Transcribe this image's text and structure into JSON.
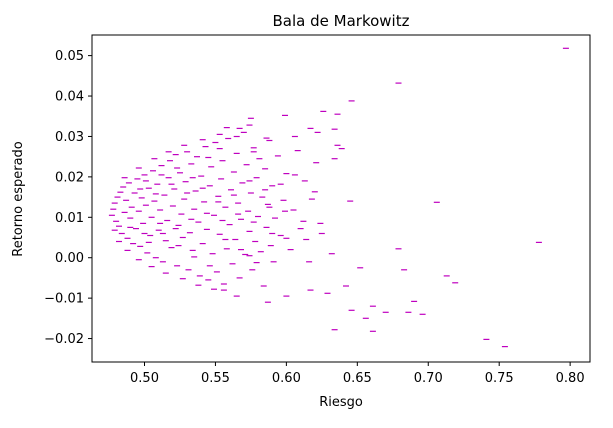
{
  "chart_data": {
    "type": "scatter",
    "title": "Bala de Markowitz",
    "xlabel": "Riesgo",
    "ylabel": "Retorno esperado",
    "xlim": [
      0.463,
      0.814
    ],
    "ylim": [
      -0.0258,
      0.0551
    ],
    "x_ticks": [
      0.5,
      0.55,
      0.6,
      0.65,
      0.7,
      0.75,
      0.8
    ],
    "x_tick_labels": [
      "0.50",
      "0.55",
      "0.60",
      "0.65",
      "0.70",
      "0.75",
      "0.80"
    ],
    "y_ticks": [
      -0.02,
      -0.01,
      0.0,
      0.01,
      0.02,
      0.03,
      0.04,
      0.05
    ],
    "y_tick_labels": [
      "−0.02",
      "−0.01",
      "0.00",
      "0.01",
      "0.02",
      "0.03",
      "0.04",
      "0.05"
    ],
    "grid": false,
    "legend": "none",
    "marker": "horizontal-dash",
    "marker_color": "#bf00bf",
    "points": [
      {
        "x": 0.797,
        "y": 0.0518
      },
      {
        "x": 0.679,
        "y": 0.0432
      },
      {
        "x": 0.646,
        "y": 0.0388
      },
      {
        "x": 0.626,
        "y": 0.0362
      },
      {
        "x": 0.636,
        "y": 0.0355
      },
      {
        "x": 0.599,
        "y": 0.0352
      },
      {
        "x": 0.575,
        "y": 0.0345
      },
      {
        "x": 0.617,
        "y": 0.032
      },
      {
        "x": 0.622,
        "y": 0.031
      },
      {
        "x": 0.634,
        "y": 0.0318
      },
      {
        "x": 0.567,
        "y": 0.032
      },
      {
        "x": 0.553,
        "y": 0.0305
      },
      {
        "x": 0.606,
        "y": 0.03
      },
      {
        "x": 0.586,
        "y": 0.0296
      },
      {
        "x": 0.636,
        "y": 0.0278
      },
      {
        "x": 0.639,
        "y": 0.027
      },
      {
        "x": 0.577,
        "y": 0.0262
      },
      {
        "x": 0.553,
        "y": 0.027
      },
      {
        "x": 0.634,
        "y": 0.0245
      },
      {
        "x": 0.606,
        "y": 0.0205
      },
      {
        "x": 0.62,
        "y": 0.0163
      },
      {
        "x": 0.645,
        "y": 0.014
      },
      {
        "x": 0.706,
        "y": 0.0137
      },
      {
        "x": 0.599,
        "y": 0.0115
      },
      {
        "x": 0.612,
        "y": 0.009
      },
      {
        "x": 0.625,
        "y": 0.006
      },
      {
        "x": 0.6,
        "y": 0.0048
      },
      {
        "x": 0.614,
        "y": 0.0045
      },
      {
        "x": 0.778,
        "y": 0.0038
      },
      {
        "x": 0.679,
        "y": 0.0022
      },
      {
        "x": 0.632,
        "y": 0.001
      },
      {
        "x": 0.574,
        "y": 0.0005
      },
      {
        "x": 0.591,
        "y": -0.001
      },
      {
        "x": 0.652,
        "y": -0.0025
      },
      {
        "x": 0.683,
        "y": -0.003
      },
      {
        "x": 0.713,
        "y": -0.0045
      },
      {
        "x": 0.719,
        "y": -0.0062
      },
      {
        "x": 0.642,
        "y": -0.007
      },
      {
        "x": 0.629,
        "y": -0.0088
      },
      {
        "x": 0.617,
        "y": -0.008
      },
      {
        "x": 0.6,
        "y": -0.0095
      },
      {
        "x": 0.587,
        "y": -0.011
      },
      {
        "x": 0.661,
        "y": -0.012
      },
      {
        "x": 0.69,
        "y": -0.0108
      },
      {
        "x": 0.686,
        "y": -0.0135
      },
      {
        "x": 0.696,
        "y": -0.014
      },
      {
        "x": 0.67,
        "y": -0.0135
      },
      {
        "x": 0.656,
        "y": -0.015
      },
      {
        "x": 0.646,
        "y": -0.013
      },
      {
        "x": 0.634,
        "y": -0.0178
      },
      {
        "x": 0.661,
        "y": -0.0182
      },
      {
        "x": 0.741,
        "y": -0.0202
      },
      {
        "x": 0.754,
        "y": -0.022
      },
      {
        "x": 0.565,
        "y": -0.0095
      },
      {
        "x": 0.556,
        "y": -0.008
      },
      {
        "x": 0.478,
        "y": 0.012
      },
      {
        "x": 0.477,
        "y": 0.0105
      },
      {
        "x": 0.479,
        "y": 0.0135
      },
      {
        "x": 0.48,
        "y": 0.009
      },
      {
        "x": 0.481,
        "y": 0.015
      },
      {
        "x": 0.482,
        "y": 0.0078
      },
      {
        "x": 0.483,
        "y": 0.0162
      },
      {
        "x": 0.484,
        "y": 0.006
      },
      {
        "x": 0.485,
        "y": 0.0175
      },
      {
        "x": 0.486,
        "y": 0.0112
      },
      {
        "x": 0.487,
        "y": 0.0142
      },
      {
        "x": 0.488,
        "y": 0.0048
      },
      {
        "x": 0.489,
        "y": 0.0185
      },
      {
        "x": 0.49,
        "y": 0.0098
      },
      {
        "x": 0.491,
        "y": 0.0125
      },
      {
        "x": 0.492,
        "y": 0.0035
      },
      {
        "x": 0.493,
        "y": 0.016
      },
      {
        "x": 0.494,
        "y": 0.0072
      },
      {
        "x": 0.495,
        "y": 0.0195
      },
      {
        "x": 0.496,
        "y": 0.0115
      },
      {
        "x": 0.497,
        "y": 0.0028
      },
      {
        "x": 0.498,
        "y": 0.0148
      },
      {
        "x": 0.499,
        "y": 0.0085
      },
      {
        "x": 0.5,
        "y": 0.0205
      },
      {
        "x": 0.501,
        "y": 0.013
      },
      {
        "x": 0.502,
        "y": 0.0012
      },
      {
        "x": 0.503,
        "y": 0.0172
      },
      {
        "x": 0.504,
        "y": 0.0055
      },
      {
        "x": 0.505,
        "y": 0.01
      },
      {
        "x": 0.506,
        "y": 0.0215
      },
      {
        "x": 0.507,
        "y": 0.014
      },
      {
        "x": 0.508,
        "y": 0.0
      },
      {
        "x": 0.509,
        "y": 0.0182
      },
      {
        "x": 0.51,
        "y": 0.0068
      },
      {
        "x": 0.511,
        "y": 0.0118
      },
      {
        "x": 0.512,
        "y": 0.0228
      },
      {
        "x": 0.513,
        "y": -0.001
      },
      {
        "x": 0.514,
        "y": 0.0155
      },
      {
        "x": 0.515,
        "y": 0.0042
      },
      {
        "x": 0.516,
        "y": 0.0092
      },
      {
        "x": 0.517,
        "y": 0.0198
      },
      {
        "x": 0.518,
        "y": 0.024
      },
      {
        "x": 0.519,
        "y": 0.0025
      },
      {
        "x": 0.52,
        "y": 0.0128
      },
      {
        "x": 0.521,
        "y": 0.017
      },
      {
        "x": 0.522,
        "y": 0.0255
      },
      {
        "x": 0.523,
        "y": -0.002
      },
      {
        "x": 0.524,
        "y": 0.008
      },
      {
        "x": 0.525,
        "y": 0.021
      },
      {
        "x": 0.526,
        "y": 0.0108
      },
      {
        "x": 0.527,
        "y": 0.005
      },
      {
        "x": 0.528,
        "y": 0.0145
      },
      {
        "x": 0.529,
        "y": 0.0188
      },
      {
        "x": 0.53,
        "y": 0.0262
      },
      {
        "x": 0.531,
        "y": -0.003
      },
      {
        "x": 0.532,
        "y": 0.0062
      },
      {
        "x": 0.533,
        "y": 0.0232
      },
      {
        "x": 0.534,
        "y": 0.0018
      },
      {
        "x": 0.535,
        "y": 0.012
      },
      {
        "x": 0.536,
        "y": 0.0165
      },
      {
        "x": 0.537,
        "y": 0.025
      },
      {
        "x": 0.538,
        "y": 0.0088
      },
      {
        "x": 0.539,
        "y": -0.0045
      },
      {
        "x": 0.54,
        "y": 0.0202
      },
      {
        "x": 0.541,
        "y": 0.0035
      },
      {
        "x": 0.542,
        "y": 0.0138
      },
      {
        "x": 0.543,
        "y": 0.0275
      },
      {
        "x": 0.544,
        "y": 0.007
      },
      {
        "x": 0.545,
        "y": -0.0055
      },
      {
        "x": 0.546,
        "y": 0.0178
      },
      {
        "x": 0.547,
        "y": 0.0225
      },
      {
        "x": 0.548,
        "y": 0.001
      },
      {
        "x": 0.549,
        "y": 0.0105
      },
      {
        "x": 0.55,
        "y": 0.0285
      },
      {
        "x": 0.551,
        "y": -0.0035
      },
      {
        "x": 0.552,
        "y": 0.0152
      },
      {
        "x": 0.553,
        "y": 0.0058
      },
      {
        "x": 0.554,
        "y": 0.0195
      },
      {
        "x": 0.555,
        "y": 0.024
      },
      {
        "x": 0.556,
        "y": -0.0065
      },
      {
        "x": 0.557,
        "y": 0.0125
      },
      {
        "x": 0.558,
        "y": 0.0022
      },
      {
        "x": 0.559,
        "y": 0.0295
      },
      {
        "x": 0.56,
        "y": 0.0082
      },
      {
        "x": 0.561,
        "y": 0.0168
      },
      {
        "x": 0.562,
        "y": -0.0015
      },
      {
        "x": 0.563,
        "y": 0.0212
      },
      {
        "x": 0.564,
        "y": 0.0045
      },
      {
        "x": 0.565,
        "y": 0.0258
      },
      {
        "x": 0.566,
        "y": 0.0135
      },
      {
        "x": 0.567,
        "y": -0.005
      },
      {
        "x": 0.568,
        "y": 0.0095
      },
      {
        "x": 0.569,
        "y": 0.0185
      },
      {
        "x": 0.57,
        "y": 0.031
      },
      {
        "x": 0.571,
        "y": 0.0008
      },
      {
        "x": 0.572,
        "y": 0.023
      },
      {
        "x": 0.573,
        "y": 0.0115
      },
      {
        "x": 0.574,
        "y": 0.0065
      },
      {
        "x": 0.575,
        "y": 0.016
      },
      {
        "x": 0.576,
        "y": -0.003
      },
      {
        "x": 0.577,
        "y": 0.0272
      },
      {
        "x": 0.578,
        "y": 0.004
      },
      {
        "x": 0.579,
        "y": 0.0198
      },
      {
        "x": 0.58,
        "y": 0.0102
      },
      {
        "x": 0.581,
        "y": 0.0245
      },
      {
        "x": 0.582,
        "y": 0.0015
      },
      {
        "x": 0.583,
        "y": 0.015
      },
      {
        "x": 0.584,
        "y": -0.007
      },
      {
        "x": 0.585,
        "y": 0.022
      },
      {
        "x": 0.586,
        "y": 0.0075
      },
      {
        "x": 0.587,
        "y": 0.0132
      },
      {
        "x": 0.588,
        "y": 0.029
      },
      {
        "x": 0.589,
        "y": 0.003
      },
      {
        "x": 0.59,
        "y": 0.0178
      },
      {
        "x": 0.592,
        "y": 0.0098
      },
      {
        "x": 0.594,
        "y": 0.0252
      },
      {
        "x": 0.596,
        "y": 0.0055
      },
      {
        "x": 0.598,
        "y": 0.0142
      },
      {
        "x": 0.6,
        "y": 0.0208
      },
      {
        "x": 0.603,
        "y": 0.002
      },
      {
        "x": 0.605,
        "y": 0.0118
      },
      {
        "x": 0.608,
        "y": 0.0265
      },
      {
        "x": 0.61,
        "y": 0.0072
      },
      {
        "x": 0.613,
        "y": 0.019
      },
      {
        "x": 0.616,
        "y": -0.001
      },
      {
        "x": 0.618,
        "y": 0.0145
      },
      {
        "x": 0.621,
        "y": 0.0235
      },
      {
        "x": 0.624,
        "y": 0.0085
      },
      {
        "x": 0.488,
        "y": 0.0018
      },
      {
        "x": 0.496,
        "y": -0.0005
      },
      {
        "x": 0.505,
        "y": -0.0022
      },
      {
        "x": 0.515,
        "y": -0.0038
      },
      {
        "x": 0.527,
        "y": -0.0052
      },
      {
        "x": 0.538,
        "y": -0.0068
      },
      {
        "x": 0.549,
        "y": -0.0078
      },
      {
        "x": 0.496,
        "y": 0.0222
      },
      {
        "x": 0.507,
        "y": 0.0245
      },
      {
        "x": 0.517,
        "y": 0.0262
      },
      {
        "x": 0.528,
        "y": 0.0278
      },
      {
        "x": 0.541,
        "y": 0.0292
      },
      {
        "x": 0.558,
        "y": 0.0322
      },
      {
        "x": 0.565,
        "y": 0.03
      },
      {
        "x": 0.574,
        "y": 0.0328
      },
      {
        "x": 0.486,
        "y": 0.0198
      },
      {
        "x": 0.482,
        "y": 0.004
      },
      {
        "x": 0.479,
        "y": 0.0068
      },
      {
        "x": 0.501,
        "y": 0.019
      },
      {
        "x": 0.512,
        "y": 0.0205
      },
      {
        "x": 0.523,
        "y": 0.0222
      },
      {
        "x": 0.534,
        "y": 0.0198
      },
      {
        "x": 0.545,
        "y": 0.0248
      },
      {
        "x": 0.503,
        "y": 0.0038
      },
      {
        "x": 0.513,
        "y": 0.006
      },
      {
        "x": 0.524,
        "y": 0.003
      },
      {
        "x": 0.535,
        "y": 0.0002
      },
      {
        "x": 0.546,
        "y": -0.002
      },
      {
        "x": 0.557,
        "y": 0.0045
      },
      {
        "x": 0.568,
        "y": 0.002
      },
      {
        "x": 0.579,
        "y": -0.0012
      },
      {
        "x": 0.59,
        "y": 0.006
      },
      {
        "x": 0.497,
        "y": 0.017
      },
      {
        "x": 0.508,
        "y": 0.0158
      },
      {
        "x": 0.519,
        "y": 0.0182
      },
      {
        "x": 0.53,
        "y": 0.016
      },
      {
        "x": 0.541,
        "y": 0.0172
      },
      {
        "x": 0.552,
        "y": 0.0138
      },
      {
        "x": 0.563,
        "y": 0.0155
      },
      {
        "x": 0.574,
        "y": 0.019
      },
      {
        "x": 0.585,
        "y": 0.0168
      },
      {
        "x": 0.596,
        "y": 0.0182
      },
      {
        "x": 0.49,
        "y": 0.0075
      },
      {
        "x": 0.5,
        "y": 0.006
      },
      {
        "x": 0.511,
        "y": 0.0085
      },
      {
        "x": 0.522,
        "y": 0.0072
      },
      {
        "x": 0.533,
        "y": 0.0095
      },
      {
        "x": 0.544,
        "y": 0.011
      },
      {
        "x": 0.555,
        "y": 0.0092
      },
      {
        "x": 0.566,
        "y": 0.0108
      },
      {
        "x": 0.577,
        "y": 0.0088
      },
      {
        "x": 0.588,
        "y": 0.0125
      }
    ]
  }
}
